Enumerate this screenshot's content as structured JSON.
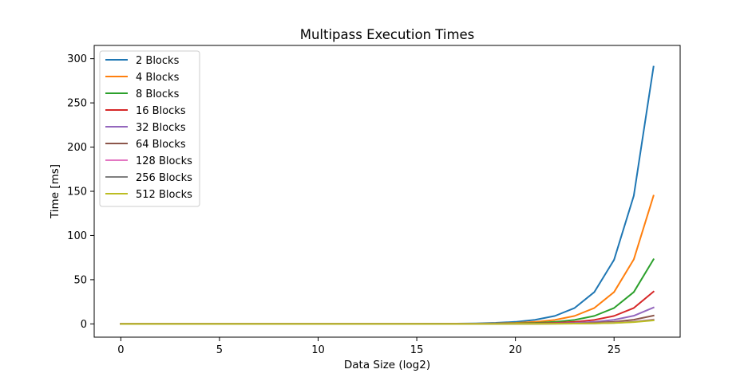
{
  "chart_data": {
    "type": "line",
    "title": "Multipass Execution Times",
    "xlabel": "Data Size (log2)",
    "ylabel": "Time [ms]",
    "xlim": [
      -1.35,
      28.35
    ],
    "ylim": [
      -15,
      315
    ],
    "xticks": [
      0,
      5,
      10,
      15,
      20,
      25
    ],
    "yticks": [
      0,
      50,
      100,
      150,
      200,
      250,
      300
    ],
    "grid": false,
    "legend_position": "upper-left",
    "x": [
      0,
      1,
      2,
      3,
      4,
      5,
      6,
      7,
      8,
      9,
      10,
      11,
      12,
      13,
      14,
      15,
      16,
      17,
      18,
      19,
      20,
      21,
      22,
      23,
      24,
      25,
      26,
      27
    ],
    "series": [
      {
        "name": "2 Blocks",
        "color": "#1f77b4",
        "values": [
          0,
          0,
          0,
          0,
          0,
          0,
          0,
          0,
          0,
          0,
          0,
          0,
          0,
          0,
          0,
          0.1,
          0.2,
          0.3,
          0.6,
          1.2,
          2.3,
          4.6,
          9,
          18,
          36,
          72.5,
          145,
          291
        ]
      },
      {
        "name": "4 Blocks",
        "color": "#ff7f0e",
        "values": [
          0,
          0,
          0,
          0,
          0,
          0,
          0,
          0,
          0,
          0,
          0,
          0,
          0,
          0,
          0,
          0.05,
          0.1,
          0.2,
          0.3,
          0.6,
          1.1,
          2.3,
          4.5,
          9,
          18,
          36,
          73,
          145
        ]
      },
      {
        "name": "8 Blocks",
        "color": "#2ca02c",
        "values": [
          0,
          0,
          0,
          0,
          0,
          0,
          0,
          0,
          0,
          0,
          0,
          0,
          0,
          0,
          0,
          0,
          0.05,
          0.1,
          0.15,
          0.3,
          0.6,
          1.1,
          2.3,
          4.5,
          9,
          18,
          36,
          73
        ]
      },
      {
        "name": "16 Blocks",
        "color": "#d62728",
        "values": [
          0,
          0,
          0,
          0,
          0,
          0,
          0,
          0,
          0,
          0,
          0,
          0,
          0,
          0,
          0,
          0,
          0,
          0.05,
          0.1,
          0.15,
          0.3,
          0.6,
          1.1,
          2.3,
          4.5,
          9,
          18,
          36.5
        ]
      },
      {
        "name": "32 Blocks",
        "color": "#9467bd",
        "values": [
          0,
          0,
          0,
          0,
          0,
          0,
          0,
          0,
          0,
          0,
          0,
          0,
          0,
          0,
          0,
          0,
          0,
          0,
          0.05,
          0.1,
          0.15,
          0.3,
          0.6,
          1.1,
          2.3,
          4.6,
          9.2,
          18.5
        ]
      },
      {
        "name": "64 Blocks",
        "color": "#8c564b",
        "values": [
          0,
          0,
          0,
          0,
          0,
          0,
          0,
          0,
          0,
          0,
          0,
          0,
          0,
          0,
          0,
          0,
          0,
          0,
          0,
          0.05,
          0.1,
          0.2,
          0.3,
          0.6,
          1.2,
          2.4,
          4.7,
          9.4
        ]
      },
      {
        "name": "128 Blocks",
        "color": "#e377c2",
        "values": [
          0,
          0,
          0,
          0,
          0,
          0,
          0,
          0,
          0,
          0,
          0,
          0,
          0,
          0,
          0,
          0,
          0,
          0,
          0,
          0,
          0.05,
          0.1,
          0.2,
          0.4,
          0.7,
          1.3,
          2.5,
          5
        ]
      },
      {
        "name": "256 Blocks",
        "color": "#7f7f7f",
        "values": [
          0,
          0,
          0,
          0,
          0,
          0,
          0,
          0,
          0,
          0,
          0,
          0,
          0,
          0,
          0,
          0,
          0,
          0,
          0,
          0,
          0.05,
          0.1,
          0.2,
          0.3,
          0.6,
          1.1,
          2.2,
          4.5
        ]
      },
      {
        "name": "512 Blocks",
        "color": "#bcbd22",
        "values": [
          0,
          0,
          0,
          0,
          0,
          0,
          0,
          0,
          0,
          0,
          0,
          0,
          0,
          0,
          0,
          0,
          0,
          0,
          0,
          0,
          0.05,
          0.1,
          0.2,
          0.3,
          0.6,
          1.0,
          2.0,
          4.0
        ]
      }
    ]
  }
}
